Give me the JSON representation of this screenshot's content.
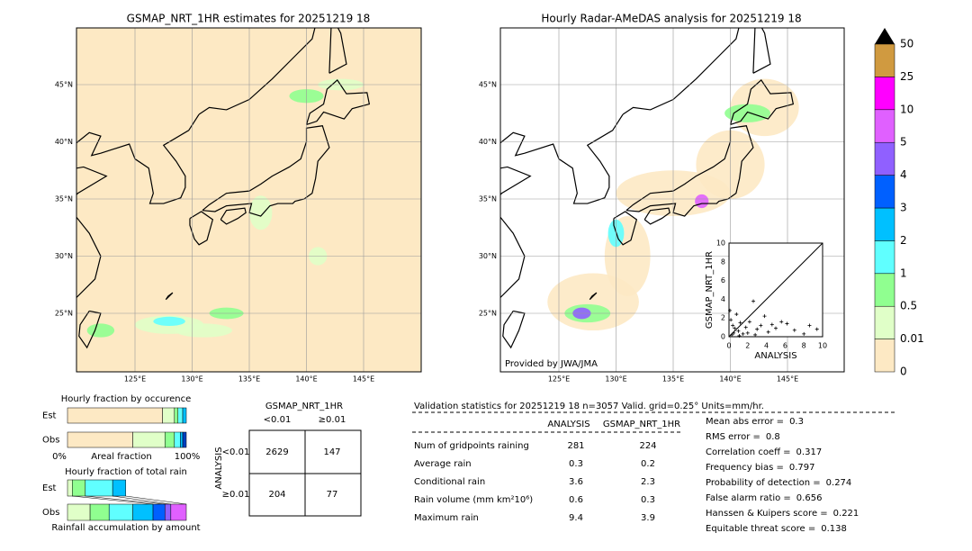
{
  "left_map": {
    "title": "GSMAP_NRT_1HR estimates for 20251219 18",
    "lat_labels": [
      "45°N",
      "40°N",
      "35°N",
      "30°N",
      "25°N"
    ],
    "lon_labels": [
      "125°E",
      "130°E",
      "135°E",
      "140°E",
      "145°E"
    ]
  },
  "right_map": {
    "title": "Hourly Radar-AMeDAS analysis for 20251219 18",
    "lat_labels": [
      "45°N",
      "40°N",
      "35°N",
      "30°N",
      "25°N"
    ],
    "lon_labels": [
      "125°E",
      "130°E",
      "135°E",
      "140°E",
      "145°E"
    ],
    "credit": "Provided by JWA/JMA"
  },
  "colorbar": {
    "levels": [
      0,
      0.01,
      0.5,
      1,
      2,
      3,
      4,
      5,
      10,
      25,
      50
    ],
    "colors": [
      "#fde9c4",
      "#e0ffc8",
      "#90ff90",
      "#60ffff",
      "#00c0ff",
      "#0060ff",
      "#9060ff",
      "#e060ff",
      "#ff00ff",
      "#d09a40"
    ],
    "extend_color": "#000000"
  },
  "scatter": {
    "xlabel": "ANALYSIS",
    "ylabel": "GSMAP_NRT_1HR",
    "xlim": [
      0,
      10
    ],
    "ylim": [
      0,
      10
    ],
    "xticks": [
      0,
      2,
      4,
      6,
      8,
      10
    ],
    "yticks": [
      0,
      2,
      4,
      6,
      8,
      10
    ],
    "x": [
      0.2,
      0.4,
      0.6,
      0.8,
      1.0,
      1.2,
      0.3,
      0.5,
      1.5,
      1.8,
      2.2,
      2.6,
      3.0,
      3.4,
      3.8,
      4.2,
      5.0,
      5.6,
      6.2,
      7.0,
      8.0,
      8.6,
      9.4,
      0.1,
      1.1,
      2.0,
      2.8,
      4.6
    ],
    "y": [
      1.8,
      1.2,
      0.9,
      2.4,
      0.6,
      1.5,
      0.2,
      0.4,
      0.3,
      1.0,
      1.6,
      3.8,
      0.8,
      1.2,
      2.2,
      0.5,
      0.9,
      1.6,
      1.4,
      0.7,
      0.3,
      1.2,
      0.8,
      2.8,
      0.1,
      0.4,
      0.2,
      1.3
    ]
  },
  "occurrence": {
    "title": "Hourly fraction by occurence",
    "rows": [
      "Est",
      "Obs"
    ],
    "est": [
      80,
      10,
      3,
      4,
      3
    ],
    "est_colors": [
      "#fde9c4",
      "#e0ffc8",
      "#90ff90",
      "#60ffff",
      "#00c0ff"
    ],
    "obs": [
      55,
      27,
      8,
      5,
      2,
      3
    ],
    "obs_colors": [
      "#fde9c4",
      "#e0ffc8",
      "#90ff90",
      "#60ffff",
      "#00c0ff",
      "#0040c0"
    ],
    "axis_left": "0%",
    "axis_label": "Areal fraction",
    "axis_right": "100%"
  },
  "total_rain": {
    "title": "Hourly fraction of total rain",
    "rows": [
      "Est",
      "Obs"
    ],
    "est": [
      4,
      11,
      23,
      11
    ],
    "est_colors": [
      "#e0ffc8",
      "#90ff90",
      "#60ffff",
      "#00c0ff"
    ],
    "obs": [
      19,
      16,
      20,
      17,
      10,
      5,
      13
    ],
    "obs_colors": [
      "#e0ffc8",
      "#90ff90",
      "#60ffff",
      "#00c0ff",
      "#0060ff",
      "#9060ff",
      "#e060ff"
    ],
    "footer": "Rainfall accumulation by amount"
  },
  "contingency": {
    "title": "GSMAP_NRT_1HR",
    "col_labels": [
      "<0.01",
      "≥0.01"
    ],
    "row_title": "ANALYSIS",
    "row_labels": [
      "<0.01",
      "≥0.01"
    ],
    "cells": [
      [
        2629,
        147
      ],
      [
        204,
        77
      ]
    ]
  },
  "validation": {
    "header": "Validation statistics for 20251219 18  n=3057 Valid. grid=0.25° Units=mm/hr.",
    "columns": [
      "ANALYSIS",
      "GSMAP_NRT_1HR"
    ],
    "rows": [
      {
        "label": "Num of gridpoints raining",
        "values": [
          281,
          224
        ]
      },
      {
        "label": "Average rain",
        "values": [
          0.3,
          0.2
        ]
      },
      {
        "label": "Conditional rain",
        "values": [
          3.6,
          2.3
        ]
      },
      {
        "label": "Rain volume (mm km²10⁶)",
        "values": [
          0.6,
          0.3
        ]
      },
      {
        "label": "Maximum rain",
        "values": [
          9.4,
          3.9
        ]
      }
    ],
    "scores": [
      {
        "label": "Mean abs error =",
        "value": 0.3
      },
      {
        "label": "RMS error =",
        "value": 0.8
      },
      {
        "label": "Correlation coeff =",
        "value": 0.317
      },
      {
        "label": "Frequency bias =",
        "value": 0.797
      },
      {
        "label": "Probability of detection =",
        "value": 0.274
      },
      {
        "label": "False alarm ratio =",
        "value": 0.656
      },
      {
        "label": "Hanssen & Kuipers score =",
        "value": 0.221
      },
      {
        "label": "Equitable threat score =",
        "value": 0.138
      }
    ]
  }
}
